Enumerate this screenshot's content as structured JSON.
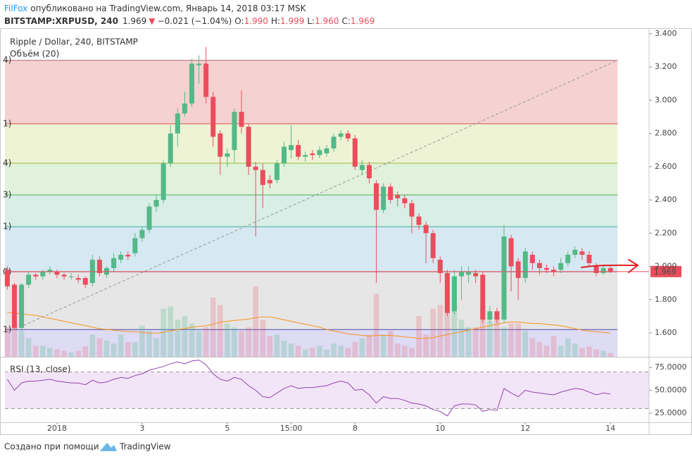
{
  "header": {
    "author": "FilFox",
    "published": "опубликовано на TradingView.com, Январь 14, 2018 03:17 MSK",
    "symbol": "BITSTAMP:XRPUSD, 240",
    "last": "1.969",
    "arrow": "▼",
    "change": "−0.021 (−1.04%)",
    "o_label": "O:",
    "o": "1.990",
    "h_label": "H:",
    "h": "1.999",
    "l_label": "L:",
    "l": "1.960",
    "c_label": "C:",
    "c": "1.969"
  },
  "chart_data": [
    {
      "type": "candlestick",
      "title": "Ripple / Dollar, 240, BITSTAMP",
      "categories": [
        null,
        null,
        null,
        null,
        null,
        null,
        null,
        "2018",
        null,
        null,
        null,
        null,
        null,
        null,
        null,
        null,
        null,
        null,
        null,
        "3",
        null,
        null,
        null,
        null,
        null,
        null,
        null,
        null,
        null,
        null,
        null,
        "5",
        null,
        null,
        null,
        null,
        null,
        null,
        null,
        null,
        "15:00",
        null,
        null,
        null,
        null,
        null,
        null,
        null,
        null,
        "8",
        null,
        null,
        null,
        null,
        null,
        null,
        null,
        null,
        null,
        null,
        null,
        "10",
        null,
        null,
        null,
        null,
        null,
        null,
        null,
        null,
        null,
        null,
        null,
        "12",
        null,
        null,
        null,
        null,
        null,
        null,
        null,
        null,
        null,
        null,
        null,
        "14"
      ],
      "open": [
        1.98,
        1.89,
        1.63,
        1.89,
        1.95,
        1.94,
        1.97,
        1.97,
        1.95,
        1.94,
        1.93,
        1.93,
        1.9,
        2.04,
        1.95,
        1.99,
        2.04,
        2.07,
        2.08,
        2.17,
        2.22,
        2.36,
        2.4,
        2.62,
        2.8,
        2.92,
        2.98,
        3.21,
        3.22,
        3.02,
        2.8,
        2.66,
        2.7,
        2.93,
        2.84,
        2.6,
        2.58,
        2.52,
        2.52,
        2.62,
        2.7,
        2.73,
        2.66,
        2.68,
        2.67,
        2.68,
        2.71,
        2.78,
        2.8,
        2.77,
        2.58,
        2.61,
        2.5,
        2.34,
        2.48,
        2.43,
        2.41,
        2.38,
        2.3,
        2.25,
        2.2,
        2.04,
        1.96,
        1.73,
        1.94,
        1.95,
        1.96,
        1.95,
        1.68,
        1.73,
        1.68,
        2.17,
        2.03,
        1.93,
        2.07,
        2.02,
        1.99,
        1.98,
        1.98,
        2.02,
        2.07,
        2.09,
        2.07,
        2.0,
        1.96,
        1.99
      ],
      "high": [
        2.0,
        1.9,
        1.9,
        1.97,
        1.96,
        1.98,
        2.0,
        1.98,
        1.96,
        1.96,
        1.95,
        1.94,
        2.07,
        2.06,
        2.0,
        2.08,
        2.09,
        2.09,
        2.2,
        2.24,
        2.38,
        2.43,
        2.64,
        2.85,
        2.95,
        3.05,
        3.25,
        3.27,
        3.32,
        3.05,
        2.82,
        2.71,
        2.95,
        3.06,
        2.86,
        2.63,
        2.62,
        2.55,
        2.64,
        2.75,
        2.85,
        2.76,
        2.69,
        2.7,
        2.72,
        2.73,
        2.8,
        2.82,
        2.82,
        2.79,
        2.64,
        2.63,
        2.52,
        2.5,
        2.5,
        2.45,
        2.43,
        2.4,
        2.32,
        2.27,
        2.22,
        2.06,
        1.98,
        1.98,
        2.0,
        2.0,
        1.98,
        1.97,
        1.76,
        1.75,
        2.25,
        2.19,
        2.05,
        2.11,
        2.09,
        2.04,
        2.01,
        2.0,
        2.05,
        2.09,
        2.12,
        2.11,
        2.09,
        2.02,
        2.01,
        1.999
      ],
      "low": [
        1.86,
        1.62,
        1.61,
        1.87,
        1.92,
        1.92,
        1.95,
        1.93,
        1.92,
        1.92,
        1.9,
        1.87,
        1.88,
        1.94,
        1.93,
        1.97,
        2.02,
        2.04,
        2.06,
        2.15,
        2.2,
        2.33,
        2.38,
        2.6,
        2.72,
        2.9,
        2.96,
        3.1,
        2.98,
        2.72,
        2.55,
        2.6,
        2.62,
        2.8,
        2.55,
        2.18,
        2.35,
        2.47,
        2.5,
        2.6,
        2.65,
        2.64,
        2.63,
        2.64,
        2.65,
        2.66,
        2.69,
        2.76,
        2.75,
        2.58,
        2.55,
        2.5,
        1.9,
        2.32,
        2.38,
        2.36,
        2.35,
        2.2,
        2.22,
        2.02,
        2.02,
        1.9,
        1.7,
        1.71,
        1.8,
        1.9,
        1.9,
        1.66,
        1.66,
        1.66,
        1.66,
        1.85,
        1.8,
        1.9,
        1.98,
        1.95,
        1.96,
        1.94,
        1.96,
        2.0,
        2.05,
        2.04,
        2.0,
        1.94,
        1.95,
        1.96
      ],
      "close": [
        1.88,
        1.63,
        1.89,
        1.95,
        1.94,
        1.97,
        1.98,
        1.95,
        1.94,
        1.94,
        1.92,
        1.89,
        2.04,
        1.96,
        1.99,
        2.05,
        2.07,
        2.06,
        2.17,
        2.22,
        2.36,
        2.4,
        2.62,
        2.8,
        2.92,
        2.98,
        3.22,
        3.22,
        3.02,
        2.78,
        2.66,
        2.68,
        2.93,
        2.84,
        2.6,
        2.58,
        2.49,
        2.5,
        2.62,
        2.72,
        2.73,
        2.66,
        2.67,
        2.67,
        2.7,
        2.71,
        2.78,
        2.8,
        2.77,
        2.6,
        2.61,
        2.53,
        2.34,
        2.48,
        2.4,
        2.41,
        2.38,
        2.3,
        2.25,
        2.2,
        2.05,
        1.96,
        1.72,
        1.94,
        1.97,
        1.97,
        1.94,
        1.68,
        1.73,
        1.68,
        2.18,
        2.0,
        1.93,
        2.09,
        2.02,
        1.99,
        1.98,
        1.97,
        2.02,
        2.07,
        2.1,
        2.07,
        2.02,
        1.96,
        1.99,
        1.969
      ],
      "up_color": "#53b987",
      "down_color": "#eb4d5c",
      "ylim": [
        1.456,
        3.425
      ],
      "yticks": [
        {
          "value": 1.6,
          "label": "1.600"
        },
        {
          "value": 1.8,
          "label": "1.800"
        },
        {
          "value": 2.0,
          "label": "2.000"
        },
        {
          "value": 2.2,
          "label": "2.200"
        },
        {
          "value": 2.4,
          "label": "2.400"
        },
        {
          "value": 2.6,
          "label": "2.600"
        },
        {
          "value": 2.8,
          "label": "2.800"
        },
        {
          "value": 3.0,
          "label": "3.000"
        },
        {
          "value": 3.2,
          "label": "3.200"
        },
        {
          "value": 3.4,
          "label": "3.400"
        }
      ],
      "grid": false,
      "last_price": 1.969,
      "last_price_color": "#eb4d5c",
      "volume": {
        "title": "Объём (20)",
        "values": [
          40,
          45,
          35,
          25,
          15,
          15,
          12,
          10,
          8,
          6,
          8,
          14,
          30,
          25,
          22,
          18,
          30,
          20,
          20,
          42,
          35,
          25,
          65,
          68,
          50,
          55,
          45,
          35,
          40,
          80,
          70,
          45,
          40,
          35,
          40,
          95,
          50,
          28,
          30,
          22,
          18,
          15,
          10,
          12,
          15,
          10,
          18,
          15,
          12,
          20,
          25,
          30,
          85,
          30,
          35,
          18,
          15,
          12,
          55,
          30,
          65,
          70,
          60,
          70,
          50,
          40,
          40,
          70,
          48,
          50,
          40,
          45,
          45,
          35,
          25,
          20,
          15,
          28,
          15,
          25,
          18,
          12,
          14,
          10,
          8,
          5
        ],
        "ma": [
          60,
          59,
          58,
          57,
          56,
          54,
          52,
          50,
          48,
          46,
          44,
          42,
          40,
          38,
          37,
          36,
          35,
          34,
          34,
          33,
          32,
          32,
          33,
          35,
          37,
          38,
          40,
          41,
          42,
          44,
          47,
          48,
          49,
          50,
          51,
          53,
          54,
          54,
          52,
          50,
          48,
          46,
          44,
          42,
          40,
          37,
          35,
          33,
          31,
          30,
          29,
          28,
          29,
          29,
          29,
          28,
          27,
          26,
          25,
          25,
          26,
          28,
          30,
          32,
          34,
          36,
          38,
          40,
          42,
          44,
          46,
          47,
          47,
          46,
          45,
          45,
          44,
          43,
          42,
          40,
          38,
          36,
          35,
          34,
          33,
          32
        ],
        "up_color": "rgba(83,185,135,0.28)",
        "down_color": "rgba(235,77,92,0.22)",
        "ma_color": "#f7931e"
      },
      "fib": {
        "levels": [
          3.24,
          2.858,
          2.621,
          2.43,
          2.239,
          1.967,
          1.62
        ],
        "labels": [
          "4)",
          "1)",
          "4)",
          "3)",
          "1)",
          "0)",
          "1)"
        ],
        "line_colors": [
          "#a86a6a",
          "#d9534f",
          "#9bbb3a",
          "#4caf50",
          "#3fae9b",
          "#a0a0a0",
          "#4a4aa8"
        ],
        "band_colors": [
          "#f5d2d0",
          "#eef3d6",
          "#e0f1dc",
          "#d8eee6",
          "#d6e8f2",
          "#e6e6e6",
          "#dedbf4"
        ]
      },
      "trendline": {
        "from": {
          "index": 1,
          "price": 1.62
        },
        "to": {
          "index": 86,
          "price": 3.24
        }
      }
    },
    {
      "type": "line",
      "title": "RSI (13, close)",
      "values": [
        62,
        50,
        58,
        60,
        60,
        61,
        62,
        60,
        59,
        58,
        58,
        56,
        61,
        58,
        59,
        62,
        64,
        63,
        66,
        68,
        72,
        74,
        76,
        79,
        81,
        79,
        82,
        83,
        78,
        68,
        62,
        60,
        64,
        62,
        55,
        50,
        43,
        42,
        47,
        52,
        55,
        52,
        53,
        53,
        54,
        55,
        58,
        60,
        58,
        50,
        51,
        45,
        36,
        43,
        41,
        41,
        39,
        36,
        35,
        33,
        29,
        27,
        22,
        33,
        35,
        35,
        34,
        27,
        29,
        28,
        52,
        47,
        43,
        50,
        48,
        47,
        46,
        45,
        48,
        50,
        52,
        51,
        48,
        45,
        47,
        46
      ],
      "color": "#8e44ad",
      "band": [
        30,
        70
      ],
      "band_color": "#f3e5f8",
      "ylim": [
        15,
        85
      ],
      "yticks": [
        {
          "value": 25,
          "label": "25.0000"
        },
        {
          "value": 50,
          "label": "50.0000"
        },
        {
          "value": 75,
          "label": "75.0000"
        }
      ]
    }
  ],
  "footer": {
    "created": "Создано при помощи",
    "brand": "TradingView"
  }
}
